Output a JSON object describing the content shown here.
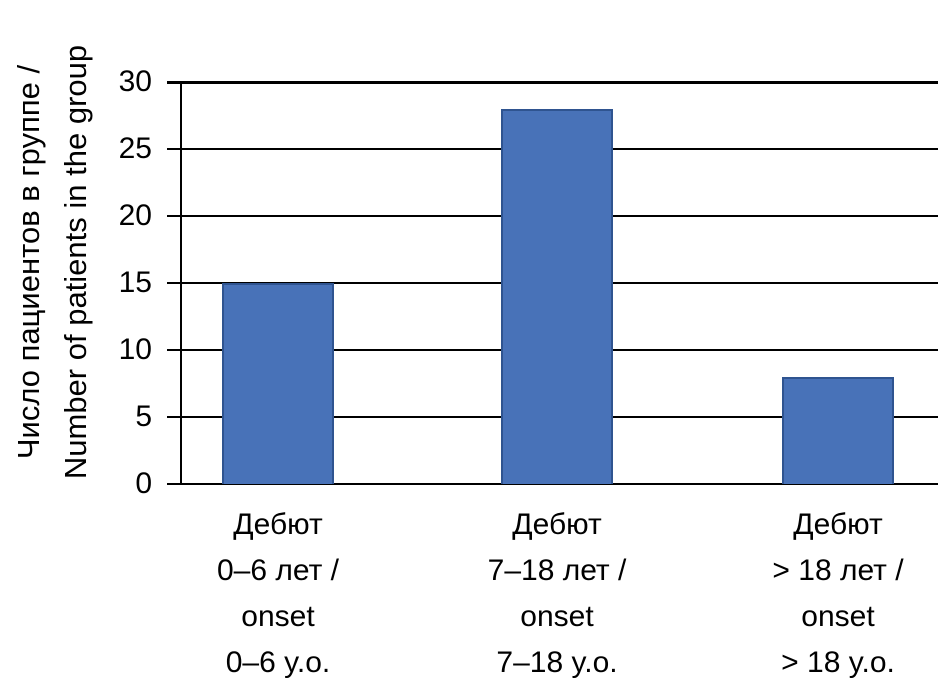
{
  "chart_data": {
    "type": "bar",
    "title": "",
    "ylabel_lines": [
      "Число пациентов в группе /",
      "Number of patients in the group"
    ],
    "ylabel": "Число пациентов в группе / Number of patients in the group",
    "categories": [
      "Дебют 0–6 лет / onset 0–6 y.o.",
      "Дебют 7–18 лет / onset 7–18 y.o.",
      "Дебют > 18 лет / onset > 18 y.o."
    ],
    "category_lines": [
      [
        "Дебют",
        "0–6 лет /",
        "onset",
        "0–6 y.o."
      ],
      [
        "Дебют",
        "7–18 лет /",
        "onset",
        "7–18 y.o."
      ],
      [
        "Дебют",
        "> 18 лет /",
        "onset",
        "> 18 y.o."
      ]
    ],
    "values": [
      15,
      28,
      8
    ],
    "yticks": [
      0,
      5,
      10,
      15,
      20,
      25,
      30
    ],
    "ylim": [
      0,
      30
    ],
    "xlabel": "",
    "grid": true,
    "legend": "none",
    "bar_fill_color": "#4872B8",
    "bar_border_color": "#2F5490",
    "grid_color": "#000000",
    "text_color": "#000000"
  }
}
